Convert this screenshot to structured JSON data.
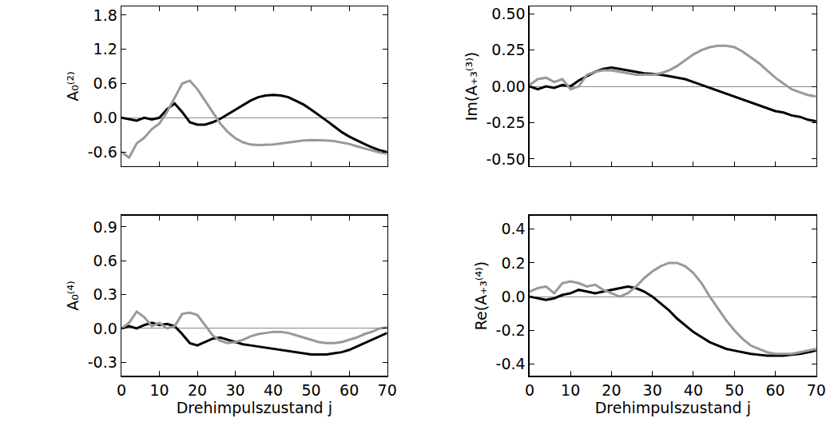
{
  "chart_data": [
    {
      "type": "line",
      "y_label": "A₀⁽²⁾",
      "tick_labels": "y",
      "x": [
        0,
        2,
        4,
        6,
        8,
        10,
        12,
        14,
        16,
        18,
        20,
        22,
        24,
        26,
        28,
        30,
        32,
        34,
        36,
        38,
        40,
        42,
        44,
        46,
        48,
        50,
        52,
        54,
        56,
        58,
        60,
        62,
        64,
        66,
        68,
        70
      ],
      "xlim": [
        0,
        70
      ],
      "xticks": [
        0,
        10,
        20,
        30,
        40,
        50,
        60,
        70
      ],
      "ylim": [
        -0.85,
        1.95
      ],
      "yticks": [
        {
          "value": -0.6,
          "label": "-0.6"
        },
        {
          "value": 0,
          "label": "0.0"
        },
        {
          "value": 0.6,
          "label": "0.6"
        },
        {
          "value": 1.2,
          "label": "1.2"
        },
        {
          "value": 1.8,
          "label": "1.8"
        }
      ],
      "series": [
        {
          "color": "#000000",
          "values": [
            0,
            -0.02,
            -0.05,
            0,
            -0.03,
            0.0,
            0.15,
            0.25,
            0.1,
            -0.08,
            -0.12,
            -0.12,
            -0.08,
            -0.02,
            0.06,
            0.14,
            0.22,
            0.3,
            0.36,
            0.39,
            0.4,
            0.39,
            0.36,
            0.3,
            0.23,
            0.14,
            0.05,
            -0.05,
            -0.15,
            -0.25,
            -0.33,
            -0.4,
            -0.46,
            -0.52,
            -0.57,
            -0.6
          ]
        },
        {
          "color": "#999999",
          "values": [
            -0.6,
            -0.7,
            -0.45,
            -0.35,
            -0.2,
            -0.1,
            0.1,
            0.35,
            0.6,
            0.65,
            0.5,
            0.3,
            0.1,
            -0.1,
            -0.25,
            -0.36,
            -0.43,
            -0.47,
            -0.48,
            -0.48,
            -0.47,
            -0.45,
            -0.43,
            -0.41,
            -0.4,
            -0.39,
            -0.39,
            -0.4,
            -0.41,
            -0.43,
            -0.46,
            -0.5,
            -0.54,
            -0.58,
            -0.61,
            -0.63
          ]
        }
      ]
    },
    {
      "type": "line",
      "y_label": "Im(A₊₃⁽³⁾)",
      "tick_labels": "y",
      "x": [
        0,
        2,
        4,
        6,
        8,
        10,
        12,
        14,
        16,
        18,
        20,
        22,
        24,
        26,
        28,
        30,
        32,
        34,
        36,
        38,
        40,
        42,
        44,
        46,
        48,
        50,
        52,
        54,
        56,
        58,
        60,
        62,
        64,
        66,
        68,
        70
      ],
      "xlim": [
        0,
        70
      ],
      "xticks": [
        0,
        10,
        20,
        30,
        40,
        50,
        60,
        70
      ],
      "ylim": [
        -0.55,
        0.55
      ],
      "yticks": [
        {
          "value": -0.5,
          "label": "-0.50"
        },
        {
          "value": -0.25,
          "label": "-0.25"
        },
        {
          "value": 0,
          "label": "0.00"
        },
        {
          "value": 0.25,
          "label": "0.25"
        },
        {
          "value": 0.5,
          "label": "0.50"
        }
      ],
      "series": [
        {
          "color": "#000000",
          "values": [
            0,
            -0.02,
            0,
            -0.01,
            0.01,
            0,
            0.04,
            0.07,
            0.1,
            0.12,
            0.13,
            0.12,
            0.11,
            0.1,
            0.09,
            0.085,
            0.08,
            0.07,
            0.06,
            0.05,
            0.03,
            0.01,
            -0.01,
            -0.03,
            -0.05,
            -0.07,
            -0.09,
            -0.11,
            -0.13,
            -0.15,
            -0.17,
            -0.18,
            -0.2,
            -0.21,
            -0.23,
            -0.24
          ]
        },
        {
          "color": "#999999",
          "values": [
            0.01,
            0.05,
            0.06,
            0.03,
            0.05,
            -0.02,
            0.0,
            0.08,
            0.1,
            0.11,
            0.11,
            0.1,
            0.09,
            0.08,
            0.08,
            0.08,
            0.09,
            0.11,
            0.14,
            0.18,
            0.22,
            0.25,
            0.27,
            0.28,
            0.28,
            0.27,
            0.24,
            0.2,
            0.16,
            0.11,
            0.06,
            0.02,
            -0.02,
            -0.04,
            -0.06,
            -0.07
          ]
        }
      ]
    },
    {
      "type": "line",
      "y_label": "A₀⁽⁴⁾",
      "x_label": "Drehimpulszustand j",
      "x": [
        0,
        2,
        4,
        6,
        8,
        10,
        12,
        14,
        16,
        18,
        20,
        22,
        24,
        26,
        28,
        30,
        32,
        34,
        36,
        38,
        40,
        42,
        44,
        46,
        48,
        50,
        52,
        54,
        56,
        58,
        60,
        62,
        64,
        66,
        68,
        70
      ],
      "xlim": [
        0,
        70
      ],
      "xticks": [
        0,
        10,
        20,
        30,
        40,
        50,
        60,
        70
      ],
      "ylim": [
        -0.42,
        1.0
      ],
      "yticks": [
        {
          "value": -0.3,
          "label": "-0.3"
        },
        {
          "value": 0,
          "label": "0.0"
        },
        {
          "value": 0.3,
          "label": "0.3"
        },
        {
          "value": 0.6,
          "label": "0.6"
        },
        {
          "value": 0.9,
          "label": "0.9"
        }
      ],
      "series": [
        {
          "color": "#000000",
          "values": [
            0,
            0.02,
            0.0,
            0.03,
            0.05,
            0.03,
            0.04,
            0.02,
            -0.05,
            -0.13,
            -0.15,
            -0.12,
            -0.09,
            -0.08,
            -0.1,
            -0.12,
            -0.14,
            -0.15,
            -0.16,
            -0.17,
            -0.18,
            -0.19,
            -0.2,
            -0.21,
            -0.22,
            -0.23,
            -0.23,
            -0.23,
            -0.22,
            -0.21,
            -0.19,
            -0.16,
            -0.13,
            -0.1,
            -0.07,
            -0.04
          ]
        },
        {
          "color": "#999999",
          "values": [
            0,
            0.05,
            0.15,
            0.1,
            0.02,
            0.05,
            0.0,
            0.02,
            0.13,
            0.14,
            0.12,
            0.03,
            -0.06,
            -0.11,
            -0.13,
            -0.12,
            -0.1,
            -0.07,
            -0.05,
            -0.04,
            -0.03,
            -0.03,
            -0.04,
            -0.06,
            -0.08,
            -0.1,
            -0.12,
            -0.13,
            -0.13,
            -0.12,
            -0.1,
            -0.08,
            -0.05,
            -0.03,
            0.0,
            0.01
          ]
        }
      ]
    },
    {
      "type": "line",
      "y_label": "Re(A₊₃⁽⁴⁾)",
      "x_label": "Drehimpulszustand j",
      "x": [
        0,
        2,
        4,
        6,
        8,
        10,
        12,
        14,
        16,
        18,
        20,
        22,
        24,
        26,
        28,
        30,
        32,
        34,
        36,
        38,
        40,
        42,
        44,
        46,
        48,
        50,
        52,
        54,
        56,
        58,
        60,
        62,
        64,
        66,
        68,
        70
      ],
      "xlim": [
        0,
        70
      ],
      "xticks": [
        0,
        10,
        20,
        30,
        40,
        50,
        60,
        70
      ],
      "ylim": [
        -0.47,
        0.48
      ],
      "yticks": [
        {
          "value": -0.4,
          "label": "-0.4"
        },
        {
          "value": -0.2,
          "label": "-0.2"
        },
        {
          "value": 0,
          "label": "0.0"
        },
        {
          "value": 0.2,
          "label": "0.2"
        },
        {
          "value": 0.4,
          "label": "0.4"
        }
      ],
      "series": [
        {
          "color": "#000000",
          "values": [
            0,
            -0.01,
            -0.02,
            -0.01,
            0.01,
            0.02,
            0.04,
            0.03,
            0.02,
            0.03,
            0.04,
            0.05,
            0.06,
            0.05,
            0.03,
            0.0,
            -0.04,
            -0.08,
            -0.13,
            -0.17,
            -0.21,
            -0.24,
            -0.27,
            -0.29,
            -0.31,
            -0.32,
            -0.33,
            -0.34,
            -0.345,
            -0.35,
            -0.35,
            -0.35,
            -0.345,
            -0.34,
            -0.33,
            -0.32
          ]
        },
        {
          "color": "#999999",
          "values": [
            0.03,
            0.05,
            0.06,
            0.02,
            0.08,
            0.09,
            0.08,
            0.06,
            0.07,
            0.04,
            0.02,
            0.0,
            0.02,
            0.06,
            0.11,
            0.15,
            0.18,
            0.2,
            0.2,
            0.18,
            0.14,
            0.08,
            0.0,
            -0.07,
            -0.14,
            -0.2,
            -0.25,
            -0.29,
            -0.31,
            -0.33,
            -0.34,
            -0.34,
            -0.34,
            -0.33,
            -0.32,
            -0.31
          ]
        }
      ]
    }
  ]
}
